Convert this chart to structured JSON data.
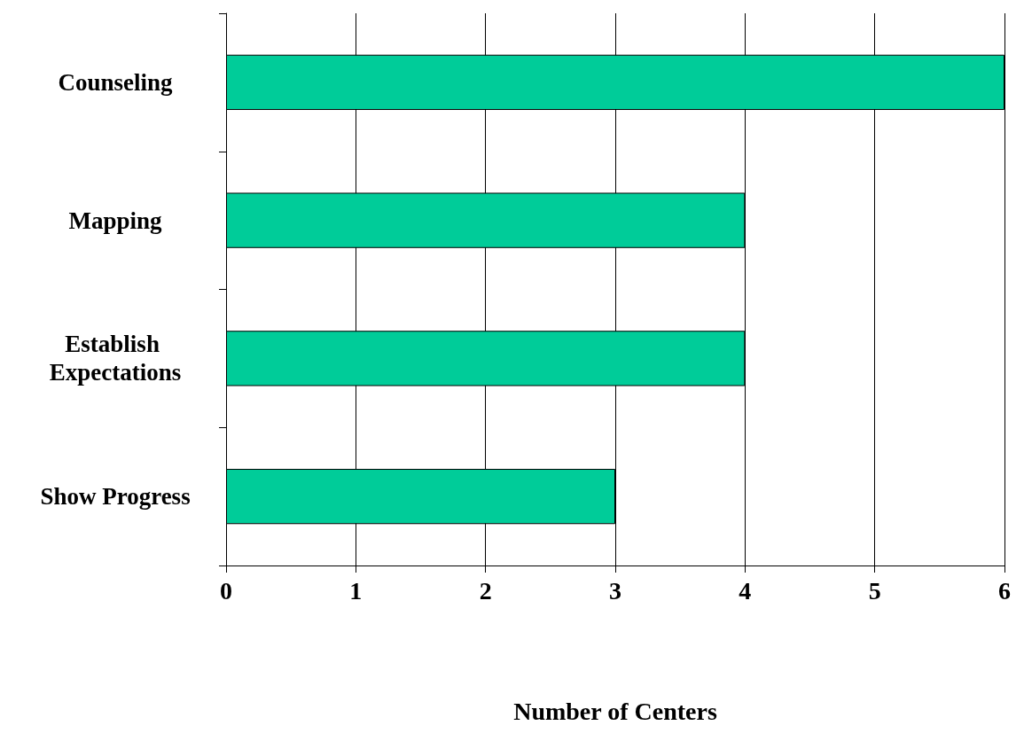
{
  "chart_data": {
    "type": "bar",
    "orientation": "horizontal",
    "categories": [
      "Counseling",
      "Mapping",
      "Establish Expectations",
      "Show Progress"
    ],
    "values": [
      6,
      4,
      4,
      3
    ],
    "color": "#00cc99",
    "xlabel": "Number of Centers",
    "xlim": [
      0,
      6
    ],
    "xticks": [
      0,
      1,
      2,
      3,
      4,
      5,
      6
    ],
    "grid": "x"
  }
}
